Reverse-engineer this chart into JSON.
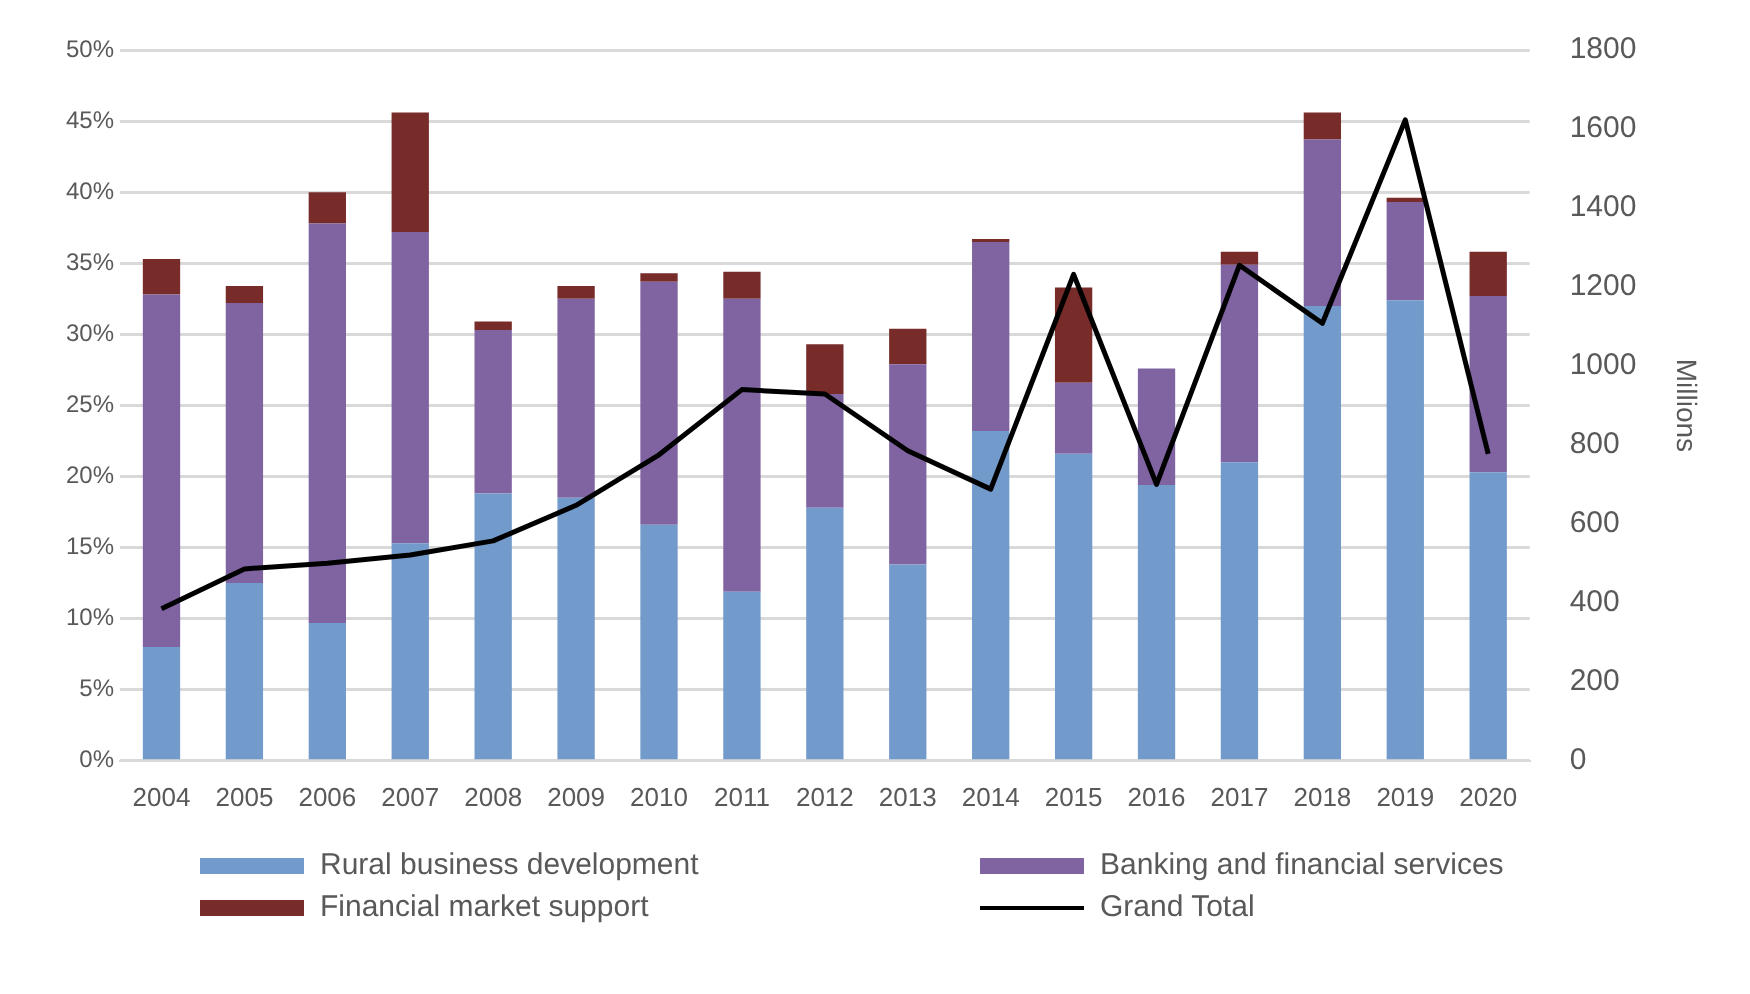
{
  "chart_data": {
    "type": "bar",
    "stacked": true,
    "categories": [
      "2004",
      "2005",
      "2006",
      "2007",
      "2008",
      "2009",
      "2010",
      "2011",
      "2012",
      "2013",
      "2014",
      "2015",
      "2016",
      "2017",
      "2018",
      "2019",
      "2020"
    ],
    "series": [
      {
        "name": "Rural business development",
        "color": "#729acb",
        "values": [
          8.0,
          12.5,
          9.7,
          15.3,
          18.8,
          18.5,
          16.6,
          11.9,
          17.8,
          13.8,
          23.2,
          21.6,
          19.4,
          21.0,
          32.0,
          32.4,
          20.3
        ]
      },
      {
        "name": "Banking and financial services",
        "color": "#8064a2",
        "values": [
          24.8,
          19.7,
          28.1,
          21.9,
          11.5,
          14.0,
          17.1,
          20.6,
          8.0,
          14.1,
          13.3,
          5.0,
          8.2,
          13.9,
          11.7,
          6.9,
          12.4
        ]
      },
      {
        "name": "Financial market support",
        "color": "#772c2a",
        "values": [
          2.5,
          1.2,
          2.2,
          8.4,
          0.6,
          0.9,
          0.6,
          1.9,
          3.5,
          2.5,
          0.2,
          6.7,
          0,
          0.9,
          1.9,
          0.3,
          3.1
        ]
      },
      {
        "name": "Grand Total",
        "type": "line",
        "axis": "y2",
        "color": "#000000",
        "values": [
          385,
          486,
          500,
          521,
          557,
          647,
          775,
          940,
          929,
          785,
          688,
          1232,
          700,
          1255,
          1108,
          1623,
          777
        ]
      }
    ],
    "ylim": [
      0,
      50
    ],
    "yticks": [
      {
        "value": 0,
        "label": "0%"
      },
      {
        "value": 5,
        "label": "5%"
      },
      {
        "value": 10,
        "label": "10%"
      },
      {
        "value": 15,
        "label": "15%"
      },
      {
        "value": 20,
        "label": "20%"
      },
      {
        "value": 25,
        "label": "25%"
      },
      {
        "value": 30,
        "label": "30%"
      },
      {
        "value": 35,
        "label": "35%"
      },
      {
        "value": 40,
        "label": "40%"
      },
      {
        "value": 45,
        "label": "45%"
      },
      {
        "value": 50,
        "label": "50%"
      }
    ],
    "y2lim": [
      0,
      1800
    ],
    "y2ticks": [
      0,
      200,
      400,
      600,
      800,
      1000,
      1200,
      1400,
      1600,
      1800
    ],
    "y2label": "Millions",
    "grid": "y",
    "legend": "bottom"
  }
}
